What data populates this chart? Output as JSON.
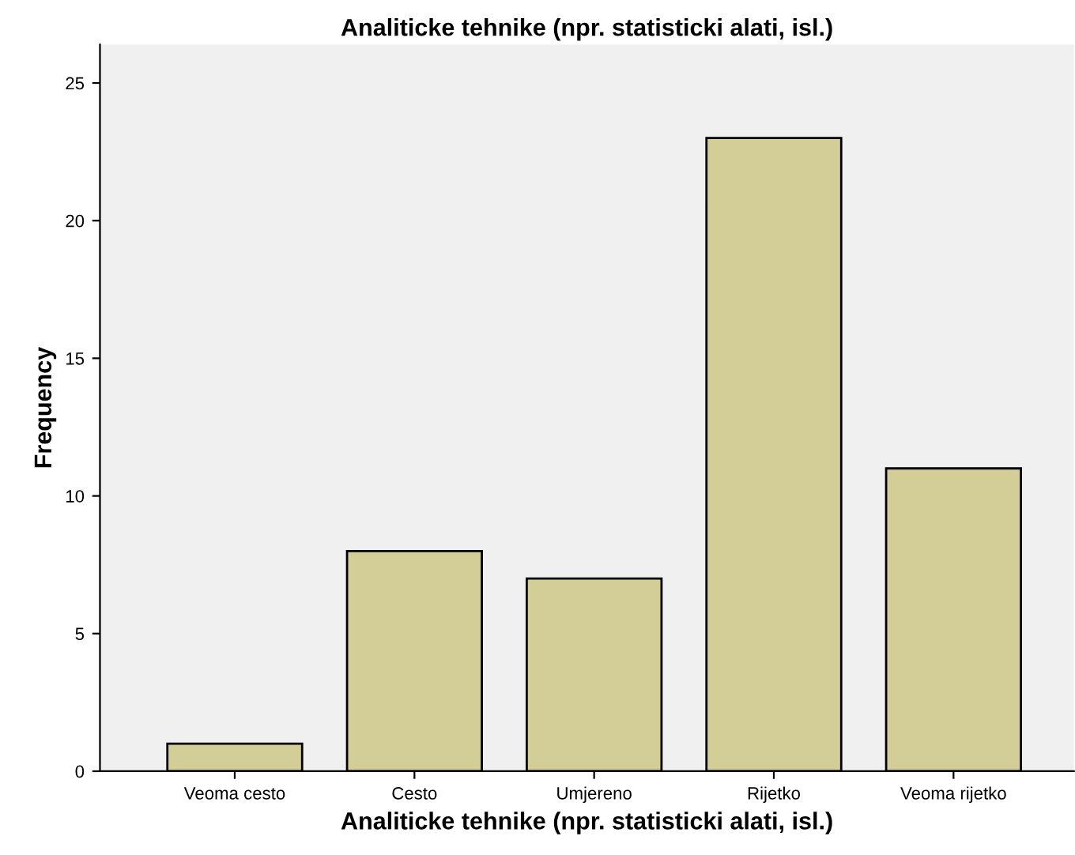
{
  "chart_data": {
    "type": "bar",
    "title": "Analiticke tehnike (npr. statisticki alati, isl.)",
    "xlabel": "Analiticke tehnike (npr. statisticki alati, isl.)",
    "ylabel": "Frequency",
    "categories": [
      "Veoma cesto",
      "Cesto",
      "Umjereno",
      "Rijetko",
      "Veoma rijetko"
    ],
    "values": [
      1,
      8,
      7,
      23,
      11
    ],
    "color": "#d3ce98",
    "ylim": [
      0,
      26.4
    ],
    "yticks": [
      0,
      5,
      10,
      15,
      20,
      25
    ],
    "grid": false,
    "legend": false
  }
}
